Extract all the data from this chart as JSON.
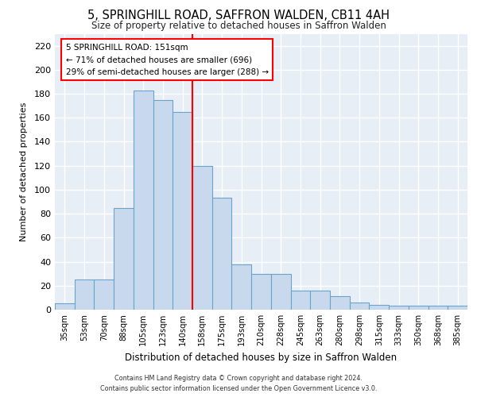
{
  "title1": "5, SPRINGHILL ROAD, SAFFRON WALDEN, CB11 4AH",
  "title2": "Size of property relative to detached houses in Saffron Walden",
  "xlabel": "Distribution of detached houses by size in Saffron Walden",
  "ylabel": "Number of detached properties",
  "categories": [
    "35sqm",
    "53sqm",
    "70sqm",
    "88sqm",
    "105sqm",
    "123sqm",
    "140sqm",
    "158sqm",
    "175sqm",
    "193sqm",
    "210sqm",
    "228sqm",
    "245sqm",
    "263sqm",
    "280sqm",
    "298sqm",
    "315sqm",
    "333sqm",
    "350sqm",
    "368sqm",
    "385sqm"
  ],
  "values": [
    5,
    25,
    25,
    85,
    183,
    175,
    165,
    120,
    93,
    38,
    30,
    30,
    16,
    16,
    11,
    6,
    4,
    3,
    3,
    3,
    3
  ],
  "bar_color": "#c8d9ed",
  "bar_edge_color": "#6aa3cc",
  "ref_line_index": 7,
  "annotation_title": "5 SPRINGHILL ROAD: 151sqm",
  "annotation_line1": "← 71% of detached houses are smaller (696)",
  "annotation_line2": "29% of semi-detached houses are larger (288) →",
  "ylim": [
    0,
    230
  ],
  "yticks": [
    0,
    20,
    40,
    60,
    80,
    100,
    120,
    140,
    160,
    180,
    200,
    220
  ],
  "background_color": "#e8eef6",
  "grid_color": "#ffffff",
  "footer_line1": "Contains HM Land Registry data © Crown copyright and database right 2024.",
  "footer_line2": "Contains public sector information licensed under the Open Government Licence v3.0."
}
